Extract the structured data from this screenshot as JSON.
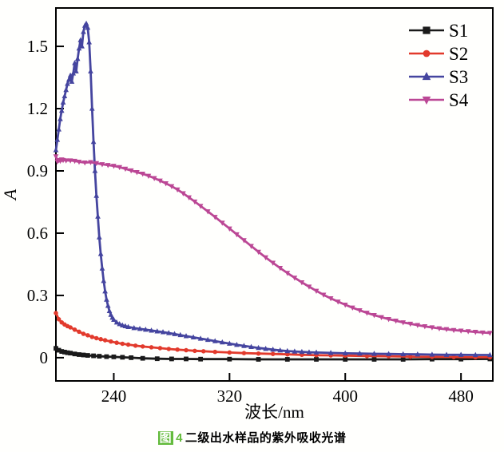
{
  "page": {
    "background": "#ffffff"
  },
  "caption": {
    "prefix": "图",
    "number": "4",
    "title": "二级出水样品的紫外吸收光谱",
    "accent_color": "#64bb3d"
  },
  "chart_data": {
    "type": "line",
    "title": "",
    "xlabel": "波长/nm",
    "ylabel": "A",
    "xlim": [
      200,
      502
    ],
    "ylim": [
      -0.112,
      1.685
    ],
    "xticks": [
      240,
      320,
      400,
      480
    ],
    "xticklabels": [
      "240",
      "320",
      "400",
      "480"
    ],
    "yticks": [
      0,
      0.3,
      0.6,
      0.9,
      1.2,
      1.5
    ],
    "yticklabels": [
      "0",
      "0.3",
      "0.6",
      "0.9",
      "1.2",
      "1.5"
    ],
    "grid": false,
    "legend_position": "top-right",
    "axis_color": "#000000",
    "series": [
      {
        "name": "S1",
        "color": "#1a1a1a",
        "marker": "square",
        "points": [
          [
            200,
            0.045
          ],
          [
            202,
            0.036
          ],
          [
            204,
            0.03
          ],
          [
            206,
            0.027
          ],
          [
            208,
            0.024
          ],
          [
            210,
            0.022
          ],
          [
            213,
            0.018
          ],
          [
            216,
            0.015
          ],
          [
            219,
            0.013
          ],
          [
            222,
            0.011
          ],
          [
            226,
            0.009
          ],
          [
            230,
            0.007
          ],
          [
            235,
            0.005
          ],
          [
            240,
            0.004
          ],
          [
            246,
            0.002
          ],
          [
            252,
            0.0
          ],
          [
            260,
            -0.003
          ],
          [
            270,
            -0.005
          ],
          [
            280,
            -0.006
          ],
          [
            290,
            -0.006
          ],
          [
            300,
            -0.007
          ],
          [
            320,
            -0.007
          ],
          [
            340,
            -0.008
          ],
          [
            360,
            -0.008
          ],
          [
            380,
            -0.008
          ],
          [
            400,
            -0.008
          ],
          [
            420,
            -0.008
          ],
          [
            440,
            -0.008
          ],
          [
            460,
            -0.007
          ],
          [
            480,
            -0.007
          ],
          [
            500,
            -0.006
          ]
        ]
      },
      {
        "name": "S2",
        "color": "#e23a2c",
        "marker": "circle",
        "points": [
          [
            200,
            0.215
          ],
          [
            202,
            0.185
          ],
          [
            204,
            0.17
          ],
          [
            206,
            0.16
          ],
          [
            208,
            0.152
          ],
          [
            210,
            0.146
          ],
          [
            213,
            0.135
          ],
          [
            216,
            0.125
          ],
          [
            219,
            0.115
          ],
          [
            222,
            0.108
          ],
          [
            225,
            0.1
          ],
          [
            228,
            0.094
          ],
          [
            231,
            0.089
          ],
          [
            234,
            0.084
          ],
          [
            238,
            0.078
          ],
          [
            242,
            0.072
          ],
          [
            246,
            0.067
          ],
          [
            250,
            0.063
          ],
          [
            255,
            0.058
          ],
          [
            260,
            0.054
          ],
          [
            266,
            0.05
          ],
          [
            272,
            0.046
          ],
          [
            278,
            0.042
          ],
          [
            284,
            0.039
          ],
          [
            290,
            0.036
          ],
          [
            296,
            0.033
          ],
          [
            302,
            0.031
          ],
          [
            310,
            0.028
          ],
          [
            320,
            0.025
          ],
          [
            330,
            0.022
          ],
          [
            340,
            0.02
          ],
          [
            350,
            0.018
          ],
          [
            360,
            0.016
          ],
          [
            370,
            0.014
          ],
          [
            380,
            0.012
          ],
          [
            390,
            0.011
          ],
          [
            400,
            0.01
          ],
          [
            415,
            0.008
          ],
          [
            430,
            0.007
          ],
          [
            445,
            0.005
          ],
          [
            460,
            0.004
          ],
          [
            475,
            0.003
          ],
          [
            490,
            0.002
          ],
          [
            500,
            0.002
          ]
        ]
      },
      {
        "name": "S3",
        "color": "#45459f",
        "marker": "triangle-up",
        "points": [
          [
            200,
            1.0
          ],
          [
            201,
            1.05
          ],
          [
            202,
            1.1
          ],
          [
            203,
            1.15
          ],
          [
            204,
            1.19
          ],
          [
            205,
            1.23
          ],
          [
            206,
            1.26
          ],
          [
            207,
            1.29
          ],
          [
            208,
            1.32
          ],
          [
            209,
            1.34
          ],
          [
            210,
            1.36
          ],
          [
            211,
            1.33
          ],
          [
            212,
            1.37
          ],
          [
            213,
            1.42
          ],
          [
            214,
            1.38
          ],
          [
            215,
            1.44
          ],
          [
            216,
            1.49
          ],
          [
            217,
            1.53
          ],
          [
            218,
            1.5
          ],
          [
            219,
            1.57
          ],
          [
            220,
            1.6
          ],
          [
            221,
            1.61
          ],
          [
            222,
            1.59
          ],
          [
            223,
            1.52
          ],
          [
            224,
            1.38
          ],
          [
            225,
            1.2
          ],
          [
            226,
            1.04
          ],
          [
            227,
            0.9
          ],
          [
            228,
            0.78
          ],
          [
            229,
            0.68
          ],
          [
            230,
            0.58
          ],
          [
            231,
            0.5
          ],
          [
            232,
            0.43
          ],
          [
            233,
            0.37
          ],
          [
            234,
            0.32
          ],
          [
            235,
            0.28
          ],
          [
            236,
            0.25
          ],
          [
            237,
            0.225
          ],
          [
            238,
            0.207
          ],
          [
            239,
            0.193
          ],
          [
            240,
            0.183
          ],
          [
            242,
            0.17
          ],
          [
            244,
            0.162
          ],
          [
            246,
            0.156
          ],
          [
            248,
            0.152
          ],
          [
            250,
            0.148
          ],
          [
            254,
            0.143
          ],
          [
            258,
            0.139
          ],
          [
            262,
            0.135
          ],
          [
            266,
            0.131
          ],
          [
            270,
            0.127
          ],
          [
            274,
            0.123
          ],
          [
            278,
            0.119
          ],
          [
            282,
            0.114
          ],
          [
            286,
            0.109
          ],
          [
            290,
            0.104
          ],
          [
            295,
            0.098
          ],
          [
            300,
            0.092
          ],
          [
            305,
            0.086
          ],
          [
            310,
            0.08
          ],
          [
            315,
            0.074
          ],
          [
            320,
            0.068
          ],
          [
            325,
            0.062
          ],
          [
            330,
            0.057
          ],
          [
            335,
            0.052
          ],
          [
            340,
            0.047
          ],
          [
            345,
            0.043
          ],
          [
            350,
            0.039
          ],
          [
            355,
            0.035
          ],
          [
            360,
            0.032
          ],
          [
            365,
            0.03
          ],
          [
            370,
            0.028
          ],
          [
            375,
            0.026
          ],
          [
            380,
            0.025
          ],
          [
            390,
            0.023
          ],
          [
            400,
            0.021
          ],
          [
            410,
            0.02
          ],
          [
            420,
            0.019
          ],
          [
            430,
            0.018
          ],
          [
            440,
            0.017
          ],
          [
            450,
            0.016
          ],
          [
            460,
            0.015
          ],
          [
            470,
            0.014
          ],
          [
            480,
            0.014
          ],
          [
            490,
            0.013
          ],
          [
            500,
            0.013
          ]
        ]
      },
      {
        "name": "S4",
        "color": "#bb4795",
        "marker": "triangle-down",
        "points": [
          [
            200,
            0.97
          ],
          [
            201,
            0.945
          ],
          [
            202,
            0.952
          ],
          [
            203,
            0.948
          ],
          [
            204,
            0.955
          ],
          [
            205,
            0.952
          ],
          [
            207,
            0.95
          ],
          [
            210,
            0.95
          ],
          [
            213,
            0.948
          ],
          [
            216,
            0.944
          ],
          [
            220,
            0.94
          ],
          [
            224,
            0.942
          ],
          [
            228,
            0.937
          ],
          [
            232,
            0.932
          ],
          [
            236,
            0.928
          ],
          [
            240,
            0.924
          ],
          [
            244,
            0.918
          ],
          [
            248,
            0.91
          ],
          [
            252,
            0.902
          ],
          [
            256,
            0.894
          ],
          [
            260,
            0.886
          ],
          [
            264,
            0.876
          ],
          [
            268,
            0.865
          ],
          [
            272,
            0.853
          ],
          [
            276,
            0.84
          ],
          [
            280,
            0.826
          ],
          [
            284,
            0.81
          ],
          [
            288,
            0.792
          ],
          [
            292,
            0.772
          ],
          [
            296,
            0.752
          ],
          [
            300,
            0.731
          ],
          [
            305,
            0.705
          ],
          [
            310,
            0.678
          ],
          [
            315,
            0.65
          ],
          [
            320,
            0.622
          ],
          [
            325,
            0.594
          ],
          [
            330,
            0.566
          ],
          [
            335,
            0.538
          ],
          [
            340,
            0.51
          ],
          [
            345,
            0.483
          ],
          [
            350,
            0.457
          ],
          [
            355,
            0.432
          ],
          [
            360,
            0.408
          ],
          [
            365,
            0.385
          ],
          [
            370,
            0.363
          ],
          [
            375,
            0.342
          ],
          [
            380,
            0.322
          ],
          [
            385,
            0.303
          ],
          [
            390,
            0.286
          ],
          [
            395,
            0.27
          ],
          [
            400,
            0.255
          ],
          [
            405,
            0.241
          ],
          [
            410,
            0.228
          ],
          [
            415,
            0.216
          ],
          [
            420,
            0.205
          ],
          [
            425,
            0.195
          ],
          [
            430,
            0.186
          ],
          [
            435,
            0.178
          ],
          [
            440,
            0.17
          ],
          [
            445,
            0.163
          ],
          [
            450,
            0.157
          ],
          [
            455,
            0.151
          ],
          [
            460,
            0.146
          ],
          [
            465,
            0.141
          ],
          [
            470,
            0.137
          ],
          [
            475,
            0.133
          ],
          [
            480,
            0.13
          ],
          [
            485,
            0.127
          ],
          [
            490,
            0.124
          ],
          [
            495,
            0.121
          ],
          [
            500,
            0.119
          ]
        ]
      }
    ]
  }
}
